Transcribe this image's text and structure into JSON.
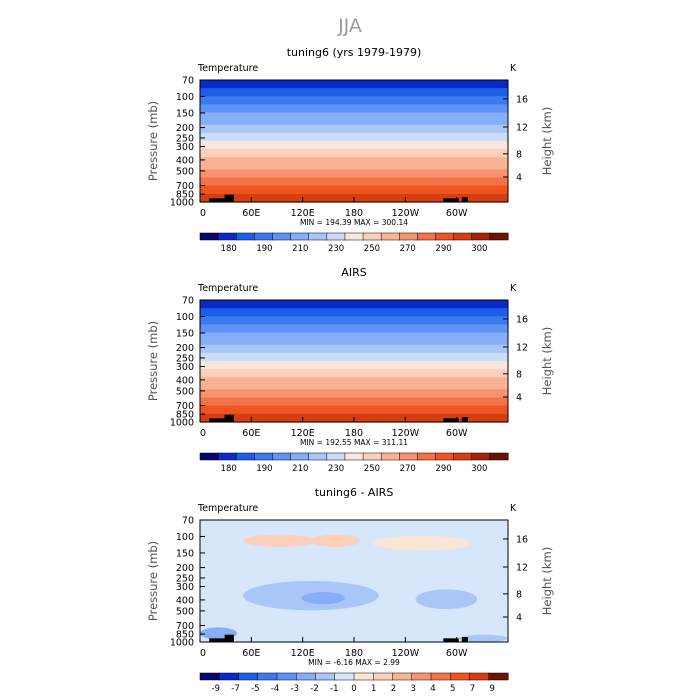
{
  "figure_title": "JJA",
  "chart_data": [
    {
      "type": "heatmap",
      "title": "tuning6 (yrs 1979-1979)",
      "field_label": "Temperature",
      "units": "K",
      "ylabel": "Pressure (mb)",
      "ylabel_right": "Height (km)",
      "pressure_ticks": [
        "70",
        "100",
        "150",
        "200",
        "250",
        "300",
        "400",
        "500",
        "700",
        "850",
        "1000"
      ],
      "height_ticks": [
        "16",
        "12",
        "8",
        "4"
      ],
      "lon_ticks": [
        "0",
        "60E",
        "120E",
        "180",
        "120W",
        "60W"
      ],
      "stats": "MIN = 194.39   MAX = 300.14",
      "min": 194.39,
      "max": 300.14,
      "colorbar_labels": [
        "180",
        "190",
        "210",
        "230",
        "250",
        "270",
        "290",
        "300"
      ],
      "colorbar_colors": [
        "#08066e",
        "#0a2ac8",
        "#1d5ee8",
        "#3a7bf0",
        "#5e93f5",
        "#85aef6",
        "#a9c6f8",
        "#c9dcf9",
        "#f9e6dc",
        "#fbd0bc",
        "#f9b394",
        "#f7936e",
        "#f47346",
        "#ee5520",
        "#d43e10",
        "#a82206",
        "#6e1204"
      ],
      "kind": "temp"
    },
    {
      "type": "heatmap",
      "title": "AIRS",
      "field_label": "Temperature",
      "units": "K",
      "ylabel": "Pressure (mb)",
      "ylabel_right": "Height (km)",
      "pressure_ticks": [
        "70",
        "100",
        "150",
        "200",
        "250",
        "300",
        "400",
        "500",
        "700",
        "850",
        "1000"
      ],
      "height_ticks": [
        "16",
        "12",
        "8",
        "4"
      ],
      "lon_ticks": [
        "0",
        "60E",
        "120E",
        "180",
        "120W",
        "60W"
      ],
      "stats": "MIN = 192.55   MAX = 311.11",
      "min": 192.55,
      "max": 311.11,
      "colorbar_labels": [
        "180",
        "190",
        "210",
        "230",
        "250",
        "270",
        "290",
        "300"
      ],
      "colorbar_colors": [
        "#08066e",
        "#0a2ac8",
        "#1d5ee8",
        "#3a7bf0",
        "#5e93f5",
        "#85aef6",
        "#a9c6f8",
        "#c9dcf9",
        "#f9e6dc",
        "#fbd0bc",
        "#f9b394",
        "#f7936e",
        "#f47346",
        "#ee5520",
        "#d43e10",
        "#a82206",
        "#6e1204"
      ],
      "kind": "temp"
    },
    {
      "type": "heatmap",
      "title": "tuning6 - AIRS",
      "field_label": "Temperature",
      "units": "K",
      "ylabel": "Pressure (mb)",
      "ylabel_right": "Height (km)",
      "pressure_ticks": [
        "70",
        "100",
        "150",
        "200",
        "250",
        "300",
        "400",
        "500",
        "700",
        "850",
        "1000"
      ],
      "height_ticks": [
        "16",
        "12",
        "8",
        "4"
      ],
      "lon_ticks": [
        "0",
        "60E",
        "120E",
        "180",
        "120W",
        "60W"
      ],
      "stats": "MIN = -6.16   MAX = 2.99",
      "min": -6.16,
      "max": 2.99,
      "colorbar_labels": [
        "-9",
        "-7",
        "-5",
        "-4",
        "-3",
        "-2",
        "-1",
        "0",
        "1",
        "2",
        "3",
        "4",
        "5",
        "7",
        "9"
      ],
      "colorbar_colors": [
        "#08066e",
        "#0a2ac8",
        "#1d5ee8",
        "#3a7bf0",
        "#5e93f5",
        "#85aef6",
        "#a9c6f8",
        "#d6e6fb",
        "#fbe6d6",
        "#fbd0bc",
        "#f9b394",
        "#f7936e",
        "#f47346",
        "#ee5520",
        "#d43e10",
        "#6e1204"
      ],
      "kind": "diff"
    }
  ]
}
